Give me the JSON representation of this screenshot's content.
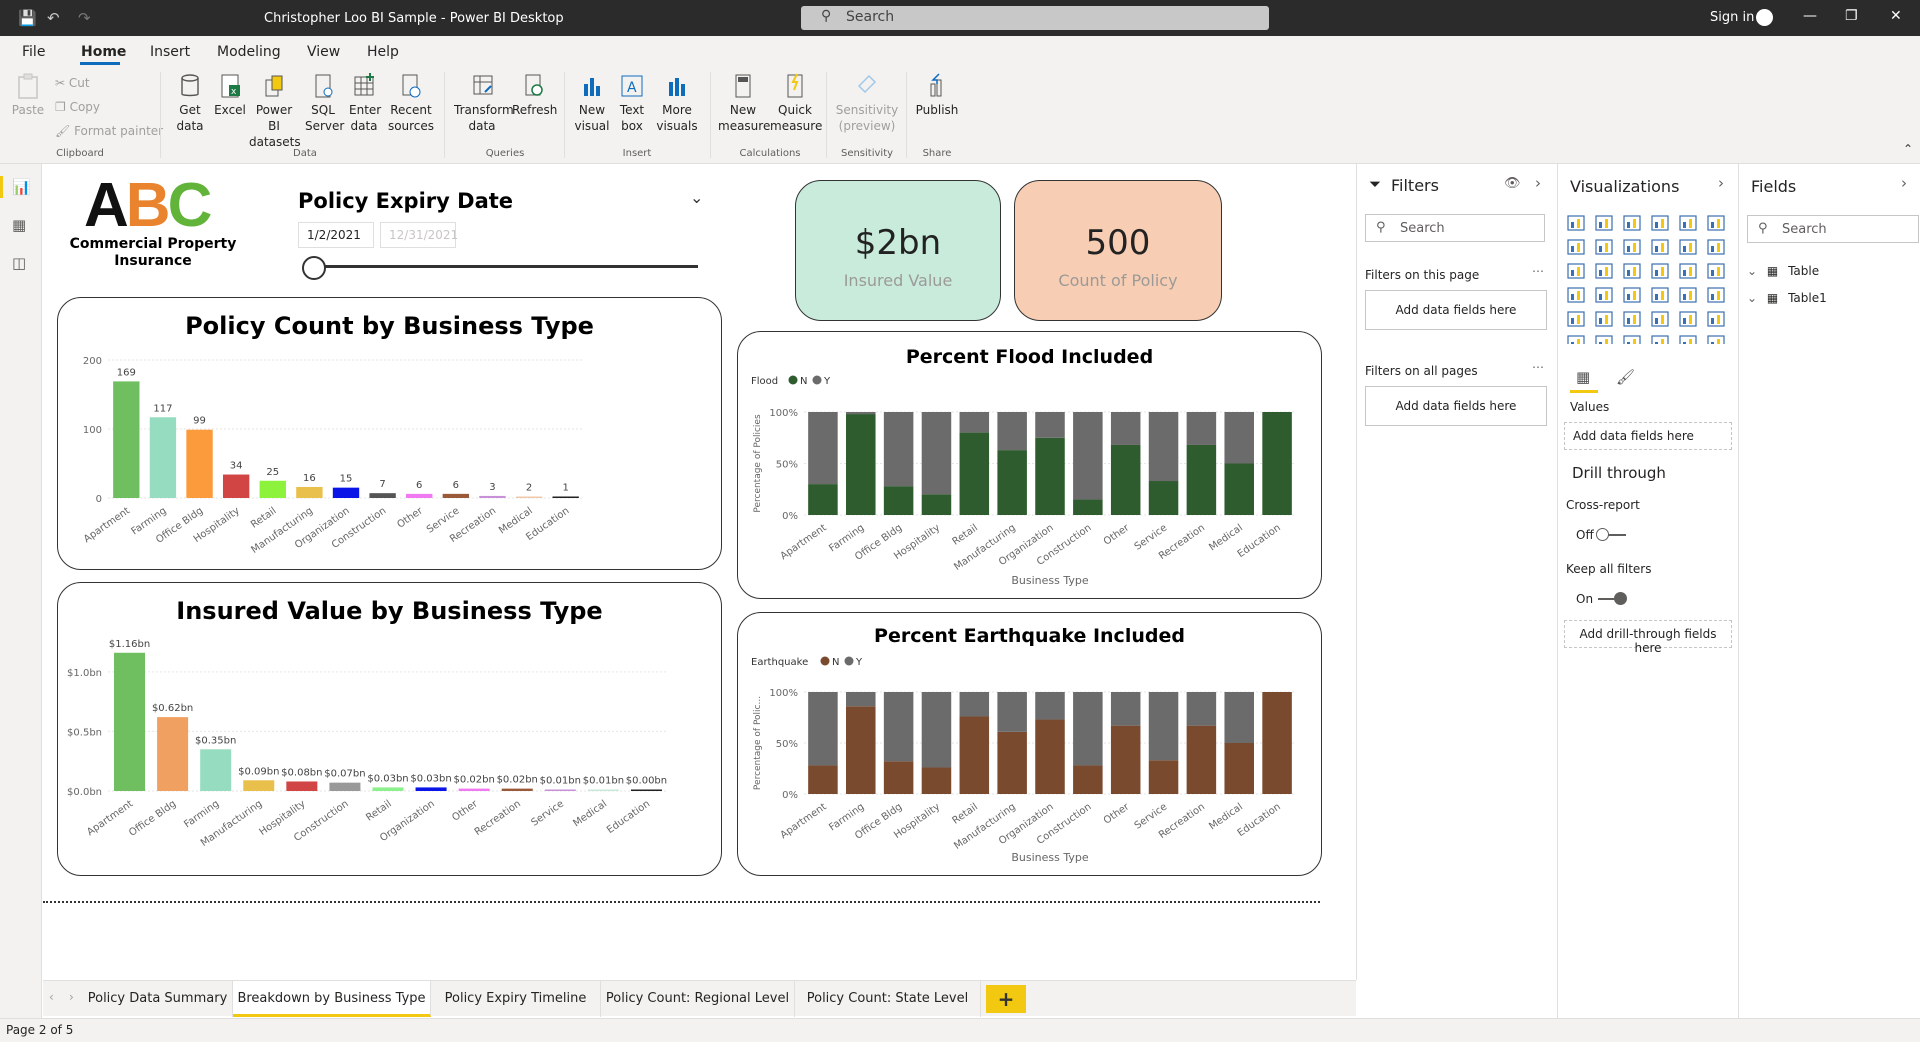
{
  "window": {
    "title": "Christopher Loo BI Sample - Power BI Desktop",
    "search_placeholder": "Search",
    "sign_in": "Sign in"
  },
  "menu": [
    "File",
    "Home",
    "Insert",
    "Modeling",
    "View",
    "Help"
  ],
  "ribbon": {
    "clipboard": {
      "paste": "Paste",
      "cut": "Cut",
      "copy": "Copy",
      "format_painter": "Format painter",
      "group": "Clipboard"
    },
    "data": {
      "get_data": "Get data",
      "excel": "Excel",
      "pbi_datasets": "Power BI datasets",
      "sql_server": "SQL Server",
      "enter_data": "Enter data",
      "recent_sources": "Recent sources",
      "group": "Data"
    },
    "queries": {
      "transform_data": "Transform data",
      "refresh": "Refresh",
      "group": "Queries"
    },
    "insert": {
      "new_visual": "New visual",
      "text_box": "Text box",
      "more_visuals": "More visuals",
      "group": "Insert"
    },
    "calculations": {
      "new_measure": "New measure",
      "quick_measure": "Quick measure",
      "group": "Calculations"
    },
    "sensitivity": {
      "label": "Sensitivity (preview)",
      "group": "Sensitivity"
    },
    "share": {
      "publish": "Publish",
      "group": "Share"
    }
  },
  "logo": {
    "letters": [
      "A",
      "B",
      "C"
    ],
    "colors": [
      "#111111",
      "#e9832d",
      "#62b33a"
    ],
    "text": "Commercial Property Insurance"
  },
  "slicer": {
    "title": "Policy Expiry Date",
    "start": "1/2/2021",
    "end": "12/31/2021"
  },
  "kpis": [
    {
      "value": "$2bn",
      "label": "Insured Value",
      "bg": "#c8ebdc"
    },
    {
      "value": "500",
      "label": "Count of Policy",
      "bg": "#f7cdb3"
    }
  ],
  "chart_data": [
    {
      "type": "bar",
      "title": "Policy Count by Business Type",
      "categories": [
        "Apartment",
        "Farming",
        "Office Bldg",
        "Hospitality",
        "Retail",
        "Manufacturing",
        "Organization",
        "Construction",
        "Other",
        "Service",
        "Recreation",
        "Medical",
        "Education"
      ],
      "values": [
        169,
        117,
        99,
        34,
        25,
        16,
        15,
        7,
        6,
        6,
        3,
        2,
        1
      ],
      "colors": [
        "#6fbf60",
        "#96dcc0",
        "#fb9b3b",
        "#d24545",
        "#8cf23c",
        "#eac04c",
        "#0a14e6",
        "#555555",
        "#f078f0",
        "#9a5a3a",
        "#c890d8",
        "#f0c8a8",
        "#222222"
      ],
      "yticks": [
        "0",
        "100",
        "200"
      ],
      "ylim": [
        0,
        200
      ]
    },
    {
      "type": "bar",
      "title": "Insured Value by Business Type",
      "categories": [
        "Apartment",
        "Office Bldg",
        "Farming",
        "Manufacturing",
        "Hospitality",
        "Construction",
        "Retail",
        "Organization",
        "Other",
        "Recreation",
        "Service",
        "Medical",
        "Education"
      ],
      "values": [
        1.16,
        0.62,
        0.35,
        0.09,
        0.08,
        0.07,
        0.03,
        0.03,
        0.02,
        0.02,
        0.01,
        0.01,
        0.0
      ],
      "labels": [
        "$1.16bn",
        "$0.62bn",
        "$0.35bn",
        "$0.09bn",
        "$0.08bn",
        "$0.07bn",
        "$0.03bn",
        "$0.03bn",
        "$0.02bn",
        "$0.02bn",
        "$0.01bn",
        "$0.01bn",
        "$0.00bn"
      ],
      "colors": [
        "#6fbf60",
        "#f0a060",
        "#96dcc0",
        "#eac04c",
        "#d24545",
        "#999999",
        "#8cf08c",
        "#0a14e6",
        "#f078f0",
        "#9a5a3a",
        "#c890d8",
        "#c8e8d8",
        "#222222"
      ],
      "yticks": [
        "$0.0bn",
        "$0.5bn",
        "$1.0bn"
      ],
      "ylim": [
        0,
        1.2
      ]
    },
    {
      "type": "bar",
      "stacked": "100%",
      "title": "Percent Flood Included",
      "legend_title": "Flood",
      "xlabel": "Business Type",
      "ylabel": "Percentage of Policies",
      "yticks": [
        "0%",
        "50%",
        "100%"
      ],
      "categories": [
        "Apartment",
        "Farming",
        "Office Bldg",
        "Hospitality",
        "Retail",
        "Manufacturing",
        "Organization",
        "Construction",
        "Other",
        "Service",
        "Recreation",
        "Medical",
        "Education"
      ],
      "series": [
        {
          "name": "N",
          "color": "#2f5c2f",
          "values": [
            30,
            98,
            28,
            20,
            80,
            63,
            75,
            15,
            68,
            33,
            68,
            50,
            100
          ]
        },
        {
          "name": "Y",
          "color": "#6b6b6b",
          "values": [
            70,
            2,
            72,
            80,
            20,
            37,
            25,
            85,
            32,
            67,
            32,
            50,
            0
          ]
        }
      ]
    },
    {
      "type": "bar",
      "stacked": "100%",
      "title": "Percent Earthquake Included",
      "legend_title": "Earthquake",
      "xlabel": "Business Type",
      "ylabel": "Percentage of Polic...",
      "yticks": [
        "0%",
        "50%",
        "100%"
      ],
      "categories": [
        "Apartment",
        "Farming",
        "Office Bldg",
        "Hospitality",
        "Retail",
        "Manufacturing",
        "Organization",
        "Construction",
        "Other",
        "Service",
        "Recreation",
        "Medical",
        "Education"
      ],
      "series": [
        {
          "name": "N",
          "color": "#7a4a2e",
          "values": [
            28,
            86,
            32,
            26,
            76,
            61,
            73,
            28,
            67,
            33,
            67,
            50,
            100
          ]
        },
        {
          "name": "Y",
          "color": "#6b6b6b",
          "values": [
            72,
            14,
            68,
            74,
            24,
            39,
            27,
            72,
            33,
            67,
            33,
            50,
            0
          ]
        }
      ]
    }
  ],
  "filters": {
    "title": "Filters",
    "search": "Search",
    "on_page": "Filters on this page",
    "on_all": "Filters on all pages",
    "add": "Add data fields here"
  },
  "visualizations": {
    "title": "Visualizations",
    "values": "Values",
    "add": "Add data fields here",
    "drill_through": "Drill through",
    "cross_report": "Cross-report",
    "cross_state": "Off",
    "keep_all": "Keep all filters",
    "keep_state": "On",
    "add_drill": "Add drill-through fields here"
  },
  "fields": {
    "title": "Fields",
    "search": "Search",
    "tables": [
      "Table",
      "Table1"
    ]
  },
  "tabs": [
    "Policy Data Summary",
    "Breakdown by Business Type",
    "Policy Expiry Timeline",
    "Policy Count: Regional Level",
    "Policy Count: State Level"
  ],
  "active_tab": 1,
  "status": "Page 2 of 5",
  "accent": "#f2c811"
}
